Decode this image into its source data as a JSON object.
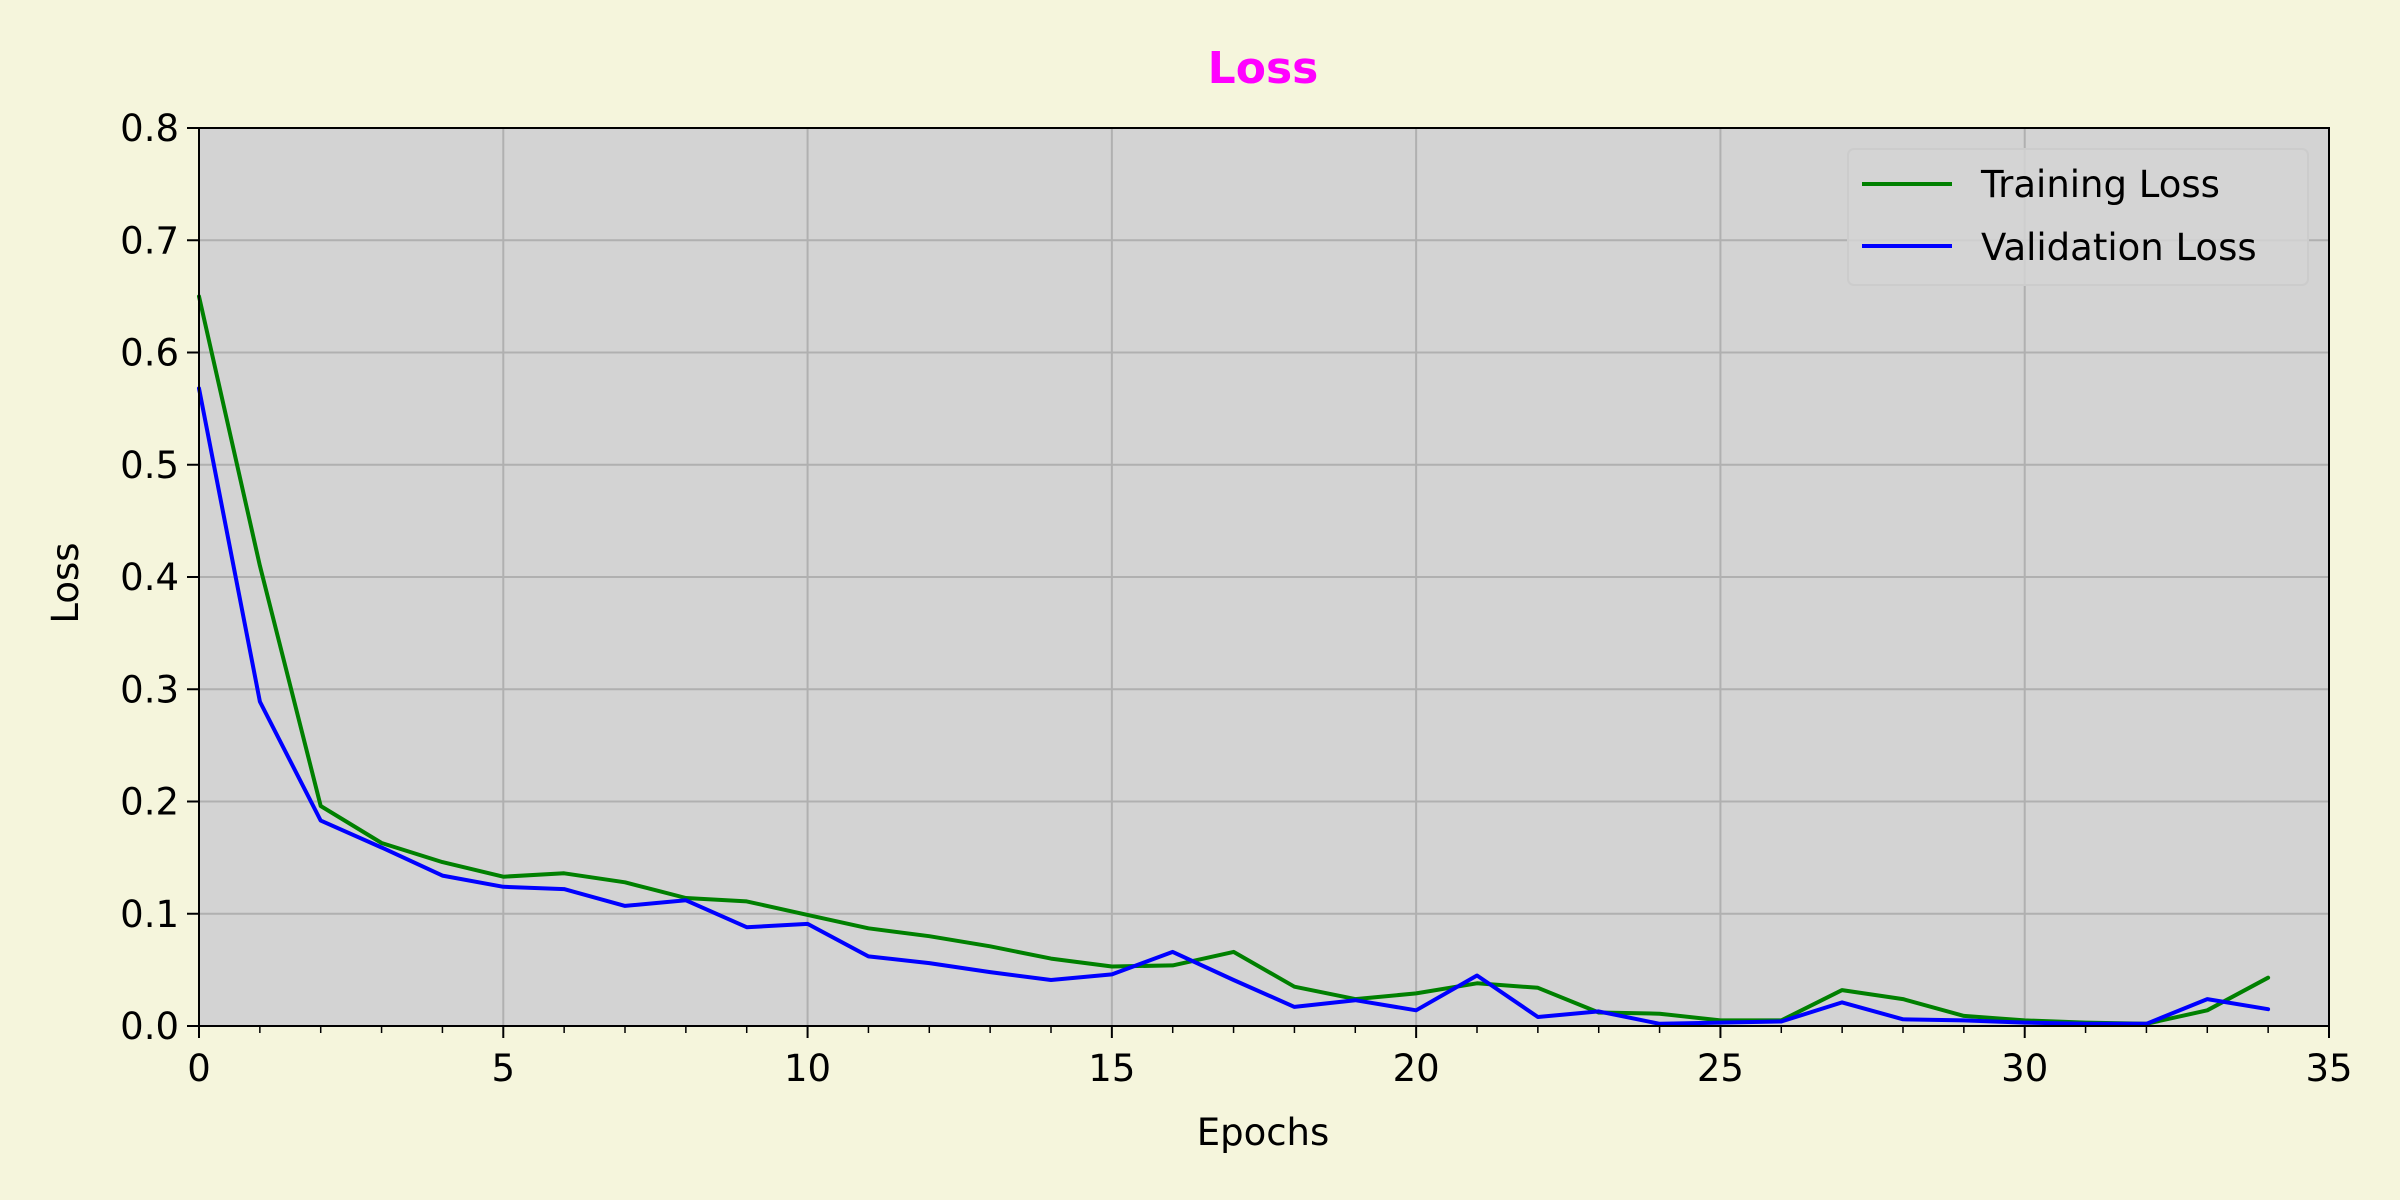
{
  "chart_data": {
    "type": "line",
    "title": "Loss",
    "xlabel": "Epochs",
    "ylabel": "Loss",
    "xlim": [
      0,
      35
    ],
    "ylim": [
      0,
      0.8
    ],
    "x_ticks": [
      0,
      5,
      10,
      15,
      20,
      25,
      30,
      35
    ],
    "y_ticks": [
      0.0,
      0.1,
      0.2,
      0.3,
      0.4,
      0.5,
      0.6,
      0.7,
      0.8
    ],
    "x_tick_labels": [
      "0",
      "5",
      "10",
      "15",
      "20",
      "25",
      "30",
      "35"
    ],
    "y_tick_labels": [
      "0.0",
      "0.1",
      "0.2",
      "0.3",
      "0.4",
      "0.5",
      "0.6",
      "0.7",
      "0.8"
    ],
    "x_minor_step": 1,
    "grid": true,
    "legend_position": "top-right",
    "x": [
      0,
      1,
      2,
      3,
      4,
      5,
      6,
      7,
      8,
      9,
      10,
      11,
      12,
      13,
      14,
      15,
      16,
      17,
      18,
      19,
      20,
      21,
      22,
      23,
      24,
      25,
      26,
      27,
      28,
      29,
      30,
      31,
      32,
      33,
      34
    ],
    "series": [
      {
        "name": "Training Loss",
        "color": "#008000",
        "values": [
          0.65,
          0.41,
          0.196,
          0.163,
          0.146,
          0.133,
          0.136,
          0.128,
          0.114,
          0.111,
          0.099,
          0.087,
          0.08,
          0.071,
          0.06,
          0.053,
          0.054,
          0.066,
          0.035,
          0.024,
          0.029,
          0.038,
          0.034,
          0.012,
          0.011,
          0.005,
          0.005,
          0.032,
          0.024,
          0.009,
          0.005,
          0.003,
          0.002,
          0.014,
          0.043
        ]
      },
      {
        "name": "Validation Loss",
        "color": "#0000ff",
        "values": [
          0.568,
          0.289,
          0.183,
          0.159,
          0.134,
          0.124,
          0.122,
          0.107,
          0.112,
          0.088,
          0.091,
          0.062,
          0.056,
          0.048,
          0.041,
          0.046,
          0.066,
          0.041,
          0.017,
          0.023,
          0.014,
          0.045,
          0.008,
          0.013,
          0.002,
          0.003,
          0.004,
          0.021,
          0.006,
          0.005,
          0.003,
          0.002,
          0.002,
          0.024,
          0.015
        ]
      }
    ]
  },
  "colors": {
    "page_background": "#f5f5dc",
    "plot_background": "#d3d3d3",
    "grid": "#b0b0b0",
    "title": "#ff00ff"
  }
}
